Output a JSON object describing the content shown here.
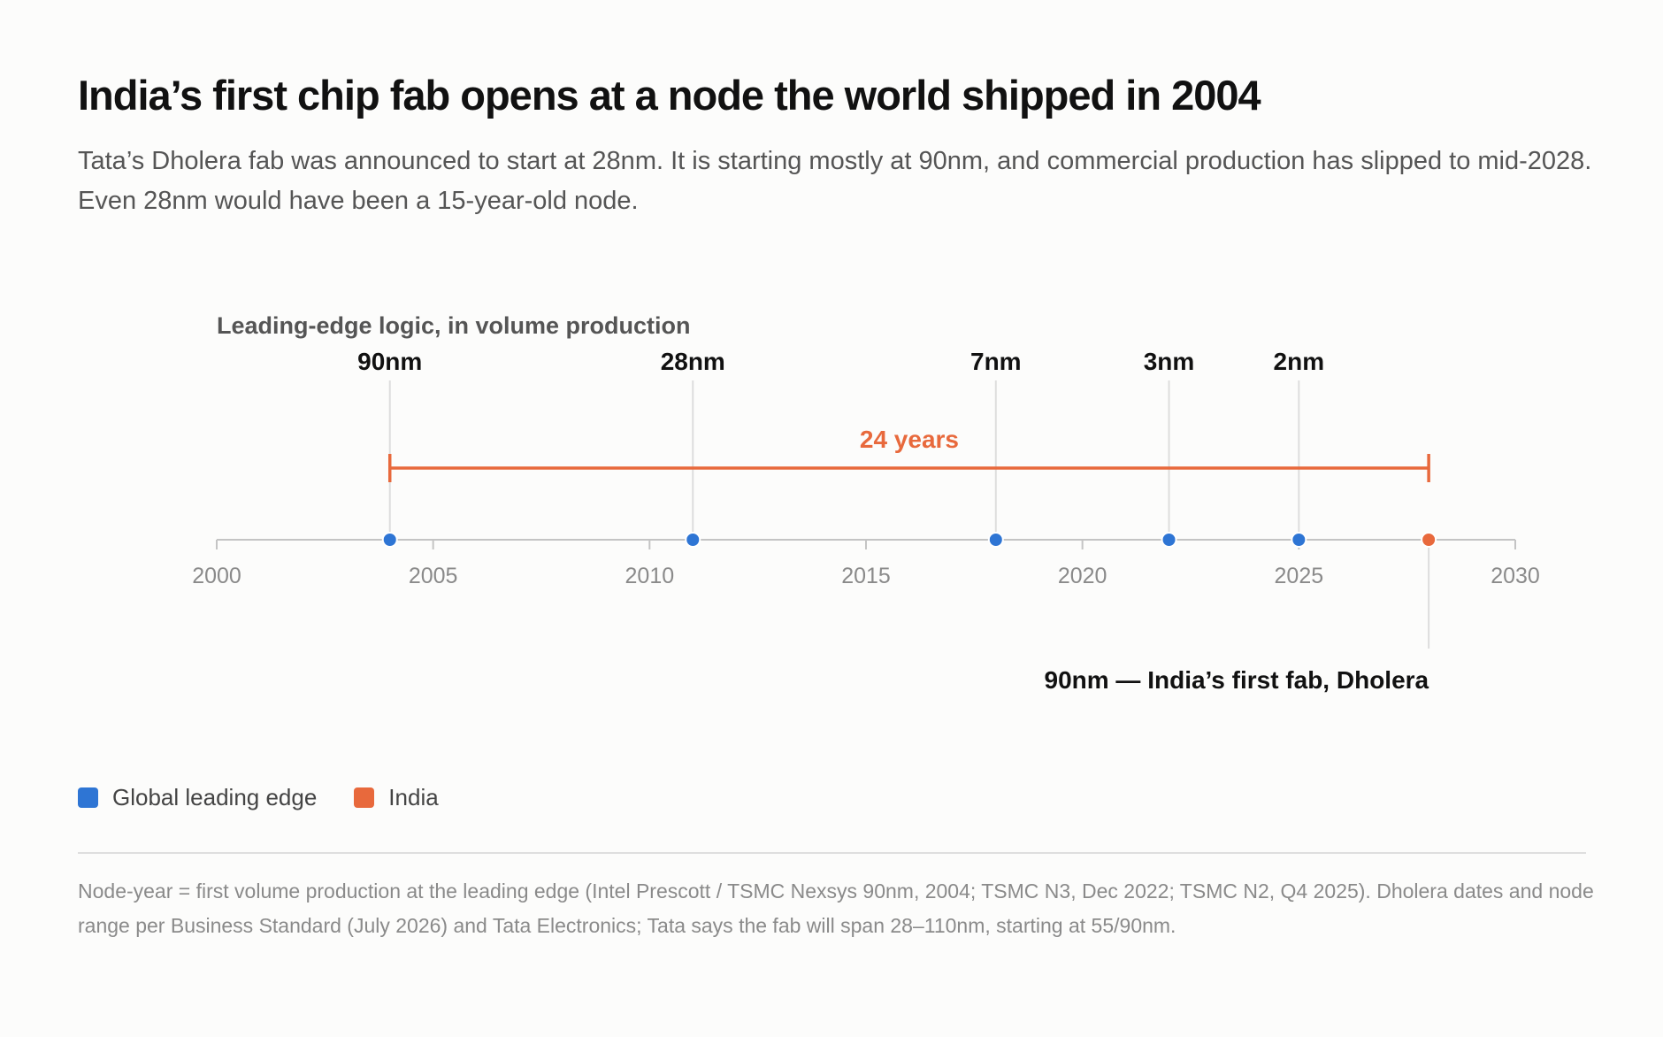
{
  "header": {
    "title": "India’s first chip fab opens at a node the world shipped in 2004",
    "subtitle": "Tata’s Dholera fab was announced to start at 28nm. It is starting mostly at 90nm, and commercial production has slipped to mid-2028. Even 28nm would have been a 15-year-old node."
  },
  "colors": {
    "global": "#2e75d4",
    "india": "#e8693c",
    "axis": "#c4c4c4",
    "gridline": "#dddddd"
  },
  "chart_data": {
    "type": "scatter",
    "chart_label": "Leading-edge logic, in volume production",
    "xlim": [
      2000,
      2030
    ],
    "x_ticks": [
      2000,
      2005,
      2010,
      2015,
      2020,
      2025,
      2030
    ],
    "series": [
      {
        "name": "Global leading edge",
        "color": "#2e75d4",
        "points": [
          {
            "x": 2004,
            "label": "90nm"
          },
          {
            "x": 2011,
            "label": "28nm"
          },
          {
            "x": 2018,
            "label": "7nm"
          },
          {
            "x": 2022,
            "label": "3nm"
          },
          {
            "x": 2025,
            "label": "2nm"
          }
        ]
      },
      {
        "name": "India",
        "color": "#e8693c",
        "points": [
          {
            "x": 2028,
            "label": "90nm — India’s first fab, Dholera"
          }
        ]
      }
    ],
    "span_annotation": {
      "from": 2004,
      "to": 2028,
      "label": "24 years"
    }
  },
  "legend": [
    {
      "label": "Global leading edge",
      "color": "#2e75d4"
    },
    {
      "label": "India",
      "color": "#e8693c"
    }
  ],
  "footnote": "Node-year = first volume production at the leading edge (Intel Prescott / TSMC Nexsys 90nm, 2004; TSMC N3, Dec 2022; TSMC N2, Q4 2025). Dholera dates and node range per Business Standard (July 2026) and Tata Electronics; Tata says the fab will span 28–110nm, starting at 55/90nm."
}
